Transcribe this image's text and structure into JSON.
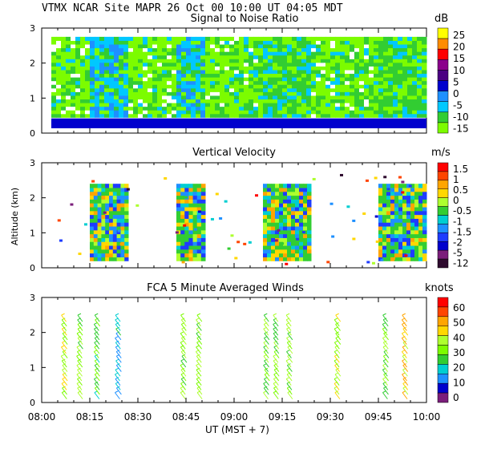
{
  "header": {
    "line": "VTMX   NCAR Site   MAPR 26 Oct 00   10:00 UT   04:05   MDT"
  },
  "colors": {
    "snr": [
      "#7CFC00",
      "#32CD32",
      "#00C8FF",
      "#1E90FF",
      "#0000CD",
      "#4B0082",
      "#8B008B",
      "#FF0000",
      "#FF8C00",
      "#FFFF00"
    ],
    "vel": [
      "#2E0B2E",
      "#7B1E7B",
      "#0000CD",
      "#1E3CFF",
      "#1E90FF",
      "#00CED1",
      "#32CD32",
      "#ADFF2F",
      "#FFD700",
      "#FFA500",
      "#FF4500",
      "#FF0000"
    ],
    "wind": [
      "#7B1E7B",
      "#0000CD",
      "#1E90FF",
      "#00CED1",
      "#32CD32",
      "#7CFC00",
      "#ADFF2F",
      "#FFD700",
      "#FFA500",
      "#FF4500",
      "#FF0000"
    ]
  },
  "chart_data": [
    {
      "type": "heatmap",
      "title": "Signal to Noise Ratio",
      "unit": "dB",
      "ylabel": "",
      "ylim": [
        0,
        3
      ],
      "yticks": [
        "0",
        "1",
        "2",
        "3"
      ],
      "colorbar": [
        "25",
        "20",
        "15",
        "10",
        "5",
        "0",
        "-5",
        "-10",
        "-15"
      ],
      "blocks": [
        {
          "t0": 8.05,
          "t1": 8.25,
          "level": "low"
        },
        {
          "t0": 8.25,
          "t1": 8.45,
          "level": "high"
        },
        {
          "t0": 8.45,
          "t1": 8.7,
          "level": "low"
        },
        {
          "t0": 8.7,
          "t1": 8.85,
          "level": "high"
        },
        {
          "t0": 8.85,
          "t1": 9.15,
          "level": "low"
        },
        {
          "t0": 9.15,
          "t1": 9.4,
          "level": "mid"
        },
        {
          "t0": 9.4,
          "t1": 9.75,
          "level": "low"
        },
        {
          "t0": 9.75,
          "t1": 10.0,
          "level": "mid"
        }
      ]
    },
    {
      "type": "heatmap",
      "title": "Vertical Velocity",
      "unit": "m/s",
      "ylabel": "Altitude (km)",
      "ylim": [
        0,
        3
      ],
      "yticks": [
        "0",
        "1",
        "2",
        "3"
      ],
      "colorbar": [
        "1.5",
        "1",
        "0.5",
        "0",
        "-0.5",
        "-1",
        "-1.5",
        "-2",
        "-5",
        "-12"
      ],
      "blocks": [
        {
          "t0": 8.25,
          "t1": 8.45,
          "level": "mixed"
        },
        {
          "t0": 8.7,
          "t1": 8.85,
          "level": "mixed"
        },
        {
          "t0": 9.15,
          "t1": 9.4,
          "level": "mixed"
        },
        {
          "t0": 9.75,
          "t1": 10.0,
          "level": "mixed"
        }
      ]
    },
    {
      "type": "scatter",
      "title": "FCA 5 Minute Averaged Winds",
      "unit": "knots",
      "ylabel": "",
      "ylim": [
        0,
        3
      ],
      "yticks": [
        "0",
        "1",
        "2",
        "3"
      ],
      "colorbar": [
        "60",
        "50",
        "40",
        "30",
        "20",
        "10",
        "0"
      ],
      "profiles": [
        {
          "t": 8.13,
          "speed": 35
        },
        {
          "t": 8.21,
          "speed": 30
        },
        {
          "t": 8.3,
          "speed": 25
        },
        {
          "t": 8.41,
          "speed": 20
        },
        {
          "t": 8.75,
          "speed": 30
        },
        {
          "t": 8.83,
          "speed": 32
        },
        {
          "t": 9.18,
          "speed": 30
        },
        {
          "t": 9.23,
          "speed": 28
        },
        {
          "t": 9.3,
          "speed": 30
        },
        {
          "t": 9.55,
          "speed": 35
        },
        {
          "t": 9.8,
          "speed": 30
        },
        {
          "t": 9.9,
          "speed": 40
        }
      ]
    }
  ],
  "xaxis": {
    "ticks": [
      "08:00",
      "08:15",
      "08:30",
      "08:45",
      "09:00",
      "09:15",
      "09:30",
      "09:45",
      "10:00"
    ],
    "label": "UT   (MST + 7)"
  }
}
